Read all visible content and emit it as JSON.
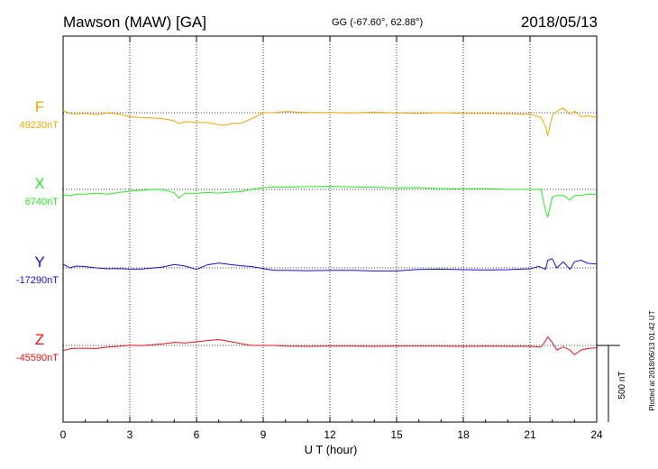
{
  "header": {
    "station": "Mawson (MAW)  [GA]",
    "coords": "GG (-67.60°,  62.88°)",
    "date": "2018/05/13"
  },
  "side_note": "Plotted at 2018/06/13 01:42 UT",
  "chart_data": {
    "type": "line",
    "xlabel": "U T (hour)",
    "xlim": [
      0,
      24
    ],
    "xticks": [
      "0",
      "3",
      "6",
      "9",
      "12",
      "15",
      "18",
      "21",
      "24"
    ],
    "grid": true,
    "scale_bar": {
      "label": "500 nT",
      "value": 500
    },
    "series": [
      {
        "name": "F",
        "baseline_label": "49230nT",
        "color": "#f5a800",
        "x": [
          0,
          0.3,
          0.6,
          1,
          1.5,
          2,
          2.5,
          3,
          3.5,
          4,
          4.5,
          5,
          5.2,
          5.5,
          6,
          6.5,
          7,
          7.3,
          7.6,
          8,
          8.5,
          9,
          9.5,
          10,
          11,
          12,
          13,
          14,
          15,
          16,
          17,
          18,
          19,
          20,
          21,
          21.5,
          21.7,
          21.8,
          22.0,
          22.2,
          22.5,
          22.8,
          23,
          23.3,
          23.6,
          24
        ],
        "y": [
          49245,
          49225,
          49222,
          49226,
          49218,
          49228,
          49222,
          49204,
          49198,
          49196,
          49190,
          49178,
          49158,
          49172,
          49166,
          49166,
          49152,
          49148,
          49162,
          49162,
          49192,
          49230,
          49232,
          49238,
          49232,
          49232,
          49228,
          49234,
          49228,
          49226,
          49230,
          49226,
          49226,
          49224,
          49220,
          49200,
          49140,
          49080,
          49210,
          49240,
          49260,
          49220,
          49240,
          49205,
          49210,
          49200
        ]
      },
      {
        "name": "X",
        "baseline_label": "6740nT",
        "color": "#22ee22",
        "x": [
          0,
          0.3,
          0.6,
          1,
          1.5,
          2,
          2.5,
          3,
          3.5,
          4,
          4.5,
          5,
          5.2,
          5.5,
          6,
          6.5,
          7,
          7.5,
          8,
          8.5,
          9,
          9.5,
          10,
          11,
          12,
          13,
          14,
          15,
          16,
          17,
          18,
          19,
          20,
          21,
          21.5,
          21.7,
          21.8,
          22.0,
          22.2,
          22.5,
          22.8,
          23,
          23.3,
          23.6,
          24
        ],
        "y": [
          6705,
          6698,
          6708,
          6710,
          6716,
          6708,
          6720,
          6728,
          6734,
          6740,
          6738,
          6718,
          6684,
          6716,
          6714,
          6720,
          6716,
          6722,
          6726,
          6742,
          6752,
          6756,
          6754,
          6758,
          6760,
          6756,
          6754,
          6750,
          6752,
          6744,
          6744,
          6744,
          6740,
          6740,
          6738,
          6600,
          6560,
          6690,
          6700,
          6700,
          6670,
          6700,
          6700,
          6710,
          6705
        ]
      },
      {
        "name": "Y",
        "baseline_label": "-17290nT",
        "color": "#1010dd",
        "x": [
          0,
          0.3,
          0.6,
          1,
          1.5,
          2,
          2.5,
          3,
          3.5,
          4,
          4.5,
          5,
          5.5,
          6,
          6.5,
          7,
          7.5,
          8,
          8.5,
          9,
          9.5,
          10,
          11,
          12,
          13,
          14,
          15,
          16,
          17,
          18,
          19,
          20,
          21,
          21.4,
          21.7,
          21.8,
          22.0,
          22.2,
          22.5,
          22.8,
          23,
          23.3,
          23.6,
          24
        ],
        "y": [
          -17265,
          -17290,
          -17278,
          -17282,
          -17290,
          -17296,
          -17294,
          -17298,
          -17298,
          -17292,
          -17284,
          -17268,
          -17278,
          -17300,
          -17270,
          -17258,
          -17268,
          -17276,
          -17282,
          -17294,
          -17306,
          -17306,
          -17308,
          -17306,
          -17306,
          -17310,
          -17310,
          -17300,
          -17298,
          -17302,
          -17304,
          -17302,
          -17296,
          -17280,
          -17300,
          -17240,
          -17230,
          -17290,
          -17250,
          -17300,
          -17250,
          -17240,
          -17260,
          -17265
        ]
      },
      {
        "name": "Z",
        "baseline_label": "-45590nT",
        "color": "#ee1111",
        "x": [
          0,
          0.3,
          0.6,
          1,
          1.5,
          2,
          2.5,
          3,
          3.5,
          4,
          4.5,
          5,
          5.5,
          6,
          6.5,
          7,
          7.5,
          8,
          8.5,
          9,
          9.5,
          10,
          11,
          12,
          13,
          14,
          15,
          16,
          17,
          18,
          19,
          20,
          21,
          21.5,
          21.7,
          21.8,
          22.0,
          22.2,
          22.5,
          22.8,
          23,
          23.3,
          23.6,
          24
        ],
        "y": [
          -45625,
          -45612,
          -45608,
          -45608,
          -45610,
          -45600,
          -45596,
          -45588,
          -45592,
          -45586,
          -45580,
          -45570,
          -45574,
          -45566,
          -45558,
          -45552,
          -45564,
          -45578,
          -45590,
          -45590,
          -45590,
          -45594,
          -45596,
          -45594,
          -45594,
          -45596,
          -45594,
          -45594,
          -45594,
          -45596,
          -45594,
          -45596,
          -45596,
          -45600,
          -45560,
          -45535,
          -45570,
          -45620,
          -45600,
          -45620,
          -45650,
          -45620,
          -45610,
          -45605
        ]
      }
    ]
  }
}
